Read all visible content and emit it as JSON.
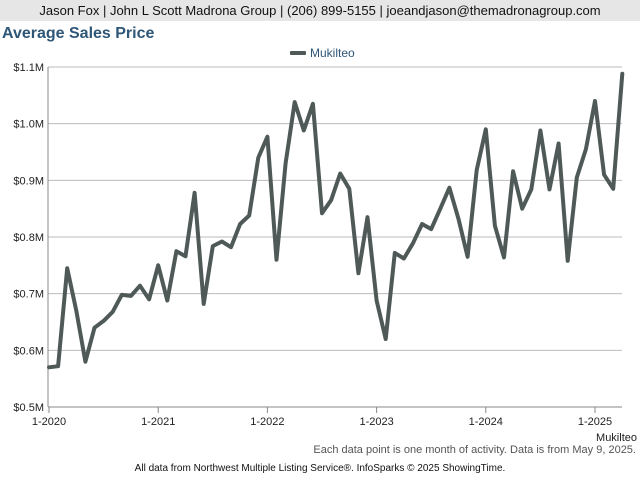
{
  "header": {
    "contact": "Jason Fox | John L Scott Madrona Group | (206) 899-5155 | joeandjason@themadronagroup.com"
  },
  "colors": {
    "series": "#4f5a58",
    "title": "#2e5677",
    "grid": "#bbbbbb"
  },
  "chart_data": {
    "type": "line",
    "title": "Average Sales Price",
    "legend_position": "top-center",
    "grid": true,
    "ylim": [
      500000,
      1100000
    ],
    "yticks": [
      {
        "value": 500000,
        "label": "$0.5M"
      },
      {
        "value": 600000,
        "label": "$0.6M"
      },
      {
        "value": 700000,
        "label": "$0.7M"
      },
      {
        "value": 800000,
        "label": "$0.8M"
      },
      {
        "value": 900000,
        "label": "$0.9M"
      },
      {
        "value": 1000000,
        "label": "$1.0M"
      },
      {
        "value": 1100000,
        "label": "$1.1M"
      }
    ],
    "xticks": [
      {
        "index": 0,
        "label": "1-2020"
      },
      {
        "index": 12,
        "label": "1-2021"
      },
      {
        "index": 24,
        "label": "1-2022"
      },
      {
        "index": 36,
        "label": "1-2023"
      },
      {
        "index": 48,
        "label": "1-2024"
      },
      {
        "index": 60,
        "label": "1-2025"
      }
    ],
    "x_axis_series_label": "Mukilteo",
    "series": [
      {
        "name": "Mukilteo",
        "x_start": "2020-01",
        "values": [
          570000,
          572000,
          745000,
          670000,
          580000,
          640000,
          652000,
          668000,
          698000,
          696000,
          714000,
          690000,
          750000,
          688000,
          775000,
          766000,
          878000,
          682000,
          784000,
          792000,
          782000,
          823000,
          838000,
          940000,
          977000,
          760000,
          930000,
          1038000,
          988000,
          1035000,
          842000,
          865000,
          912000,
          885000,
          736000,
          835000,
          688000,
          620000,
          772000,
          762000,
          789000,
          823000,
          814000,
          850000,
          887000,
          832000,
          765000,
          918000,
          990000,
          820000,
          764000,
          916000,
          850000,
          884000,
          988000,
          884000,
          965000,
          758000,
          905000,
          955000,
          1040000,
          910000,
          885000,
          1088000
        ]
      }
    ]
  },
  "notes": {
    "activity": "Each data point is one month of activity. Data is from May 9, 2025.",
    "source": "All data from Northwest Multiple Listing Service®. InfoSparks © 2025 ShowingTime."
  }
}
